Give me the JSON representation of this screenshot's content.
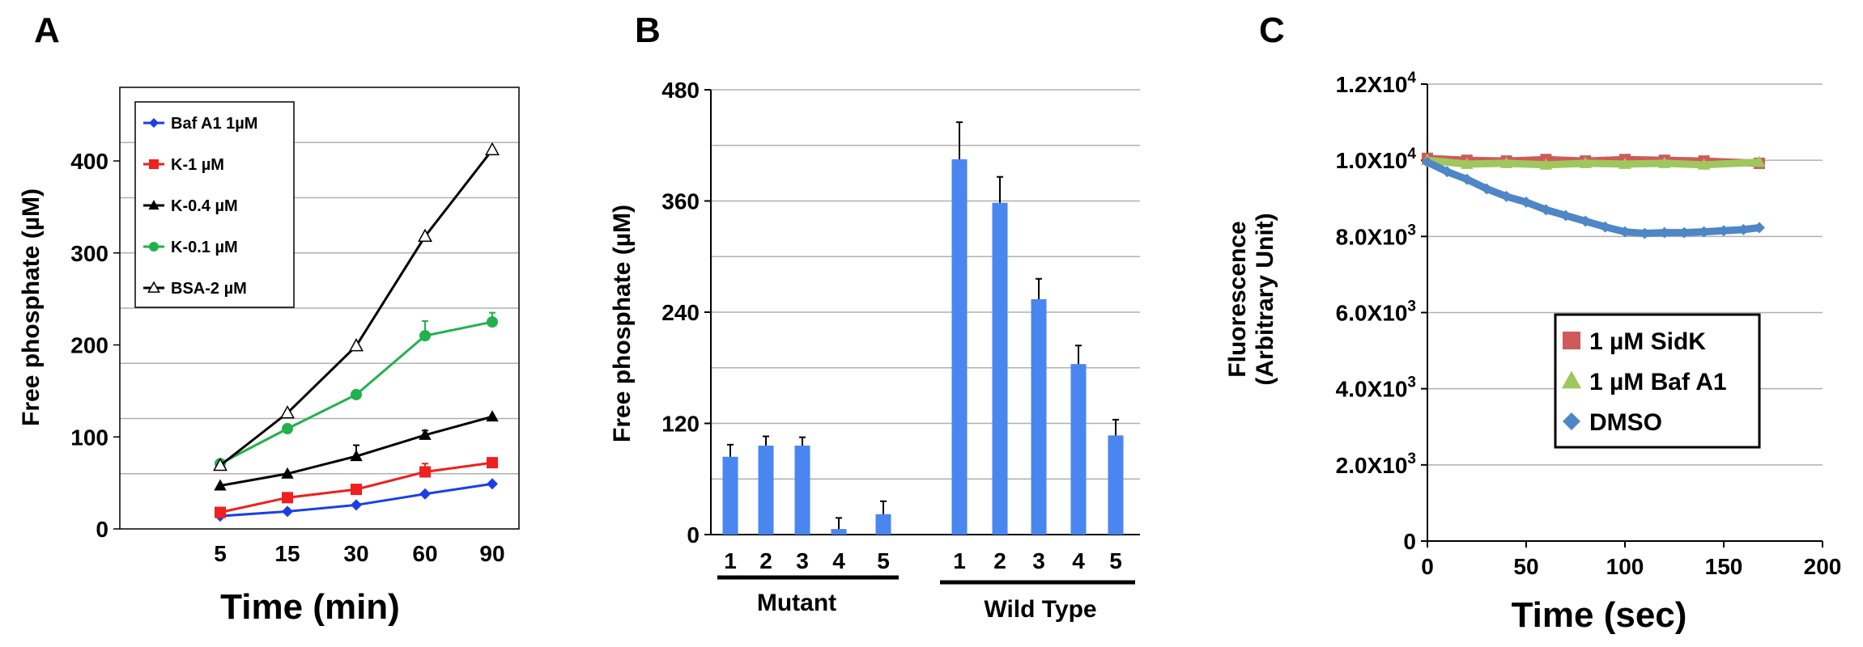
{
  "chart_data": [
    {
      "panel": "A",
      "type": "line",
      "xlabel": "Time (min)",
      "ylabel": "Free phosphate (µM)",
      "categories": [
        "5",
        "15",
        "30",
        "60",
        "90"
      ],
      "ylim": [
        0,
        400
      ],
      "yticks": [
        "0",
        "100",
        "200",
        "300",
        "400"
      ],
      "ytick_values": [
        0,
        100,
        200,
        300,
        400
      ],
      "grid": true,
      "legend_position": "top-left",
      "series": [
        {
          "name": "Baf A1 1µM",
          "color": "#1a3fe6",
          "marker": "diamond",
          "values": [
            14,
            19,
            26,
            38,
            49
          ],
          "errors": [
            0,
            0,
            0,
            2,
            0
          ]
        },
        {
          "name": "K-1 µM",
          "color": "#ee2020",
          "marker": "square",
          "values": [
            18,
            34,
            43,
            62,
            72
          ],
          "errors": [
            0,
            0,
            0,
            9,
            0
          ]
        },
        {
          "name": "K-0.4 µM",
          "color": "#000000",
          "marker": "triangle",
          "values": [
            47,
            60,
            79,
            102,
            122
          ],
          "errors": [
            0,
            0,
            12,
            5,
            0
          ]
        },
        {
          "name": "K-0.1 µM",
          "color": "#22b14c",
          "marker": "circle",
          "values": [
            71,
            109,
            146,
            210,
            225
          ],
          "errors": [
            0,
            0,
            0,
            16,
            10
          ]
        },
        {
          "name": "BSA-2 µM",
          "color": "#000000",
          "marker": "open-triangle",
          "values": [
            69,
            126,
            199,
            318,
            412
          ],
          "errors": [
            0,
            0,
            0,
            0,
            0
          ]
        }
      ]
    },
    {
      "panel": "B",
      "type": "bar",
      "ylabel": "Free phosphate (µM)",
      "categories": [
        "1",
        "2",
        "3",
        "4",
        "5",
        "1",
        "2",
        "3",
        "4",
        "5"
      ],
      "groups": [
        "Mutant",
        "Wild Type"
      ],
      "values": [
        84,
        96,
        96,
        6,
        22,
        405,
        358,
        254,
        184,
        107
      ],
      "errors": [
        13,
        10,
        9,
        12,
        14,
        40,
        28,
        22,
        20,
        17
      ],
      "ylim": [
        0,
        480
      ],
      "yticks": [
        "0",
        "120",
        "240",
        "360",
        "480"
      ],
      "ytick_values": [
        0,
        120,
        240,
        360,
        480
      ],
      "color": "#4a86f0",
      "grid": true
    },
    {
      "panel": "C",
      "type": "scatter",
      "xlabel": "Time (sec)",
      "ylabel": "Fluorescence (Arbitrary Unit)",
      "ylabel_lines": [
        "Fluorescence",
        "(Arbitrary Unit)"
      ],
      "xlim": [
        0,
        200
      ],
      "ylim": [
        0,
        12000
      ],
      "xticks": [
        "0",
        "50",
        "100",
        "150",
        "200"
      ],
      "xtick_values": [
        0,
        50,
        100,
        150,
        200
      ],
      "yticks": [
        [
          "0",
          ""
        ],
        [
          "2.0X10",
          "3"
        ],
        [
          "4.0X10",
          "3"
        ],
        [
          "6.0X10",
          "3"
        ],
        [
          "8.0X10",
          "3"
        ],
        [
          "1.0X10",
          "4"
        ],
        [
          "1.2X10",
          "4"
        ]
      ],
      "ytick_values": [
        0,
        2000,
        4000,
        6000,
        8000,
        10000,
        12000
      ],
      "grid": true,
      "legend_position": "center-right",
      "series": [
        {
          "name": "1 µM SidK",
          "color": "#cf5a5a",
          "marker": "square",
          "x": [
            0,
            20,
            40,
            60,
            80,
            100,
            120,
            140,
            168
          ],
          "y": [
            10050,
            10000,
            9980,
            10020,
            9980,
            10020,
            10000,
            9980,
            9920
          ]
        },
        {
          "name": "1 µM Baf A1",
          "color": "#9ec75e",
          "marker": "triangle",
          "x": [
            0,
            20,
            40,
            60,
            80,
            100,
            120,
            140,
            168
          ],
          "y": [
            10000,
            9900,
            9920,
            9880,
            9920,
            9900,
            9920,
            9880,
            9950
          ]
        },
        {
          "name": "DMSO",
          "color": "#4e86c6",
          "marker": "diamond",
          "x": [
            0,
            10,
            20,
            30,
            40,
            50,
            60,
            70,
            80,
            90,
            100,
            110,
            120,
            130,
            140,
            150,
            160,
            168
          ],
          "y": [
            9950,
            9700,
            9500,
            9250,
            9050,
            8900,
            8700,
            8550,
            8400,
            8250,
            8120,
            8080,
            8100,
            8100,
            8120,
            8150,
            8180,
            8230
          ]
        }
      ]
    }
  ]
}
